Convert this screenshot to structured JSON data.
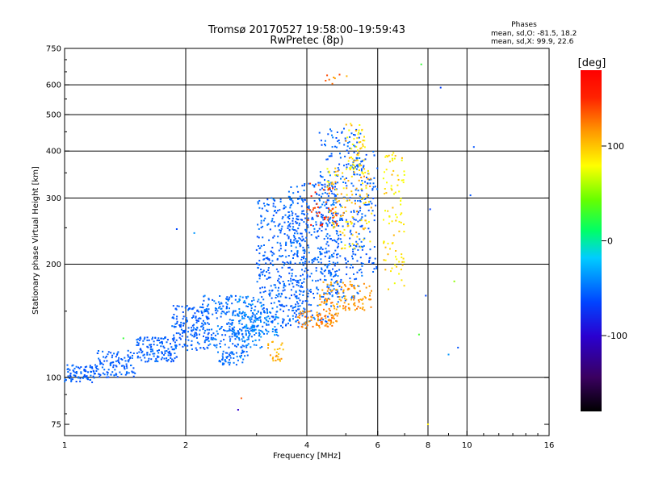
{
  "chart_data": {
    "type": "scatter",
    "title": "Tromsø 20170527 19:58:00–19:59:43",
    "subtitle": "RwPretec (8p)",
    "phases_header": "Phases",
    "phases_o": "mean, sd,O: -81.5, 18.2",
    "phases_x": "mean, sd,X:  99.9, 22.6",
    "xlabel": "Frequency [MHz]",
    "ylabel": "Stationary phase Virtual Height [km]",
    "x_scale": "log",
    "y_scale": "log",
    "xlim": [
      1,
      16
    ],
    "ylim": [
      70,
      750
    ],
    "xticks": [
      1,
      2,
      4,
      6,
      8,
      10,
      16
    ],
    "xtick_labels": [
      "1",
      "2",
      "4",
      "6",
      "8",
      "10",
      "16"
    ],
    "x_gridlines": [
      2,
      4,
      6,
      8,
      10
    ],
    "yticks": [
      75,
      100,
      200,
      300,
      400,
      500,
      600,
      750
    ],
    "ytick_labels": [
      "75",
      "100",
      "200",
      "300",
      "400",
      "500",
      "600",
      "750"
    ],
    "y_gridlines": [
      100,
      200,
      300,
      400,
      500,
      600
    ],
    "grid": true,
    "colorbar": {
      "label": "[deg]",
      "range": [
        -180,
        180
      ],
      "ticks": [
        100,
        0,
        -100
      ],
      "tick_labels": [
        "100",
        "0",
        "-100"
      ],
      "colormap": "black-purple-blue-cyan-green-yellow-orange-red"
    },
    "series": [
      {
        "mode": "O",
        "phase_mean": -81.5,
        "phase_sd": 18.2,
        "clusters": [
          {
            "f": [
              1.0,
              1.2
            ],
            "h": [
              97,
              108
            ],
            "phase": [
              -95,
              -75
            ],
            "count": 80
          },
          {
            "f": [
              1.2,
              1.5
            ],
            "h": [
              100,
              118
            ],
            "phase": [
              -95,
              -75
            ],
            "count": 110
          },
          {
            "f": [
              1.5,
              1.9
            ],
            "h": [
              110,
              128
            ],
            "phase": [
              -95,
              -75
            ],
            "count": 140
          },
          {
            "f": [
              1.85,
              2.3
            ],
            "h": [
              118,
              155
            ],
            "phase": [
              -95,
              -75
            ],
            "count": 170
          },
          {
            "f": [
              2.2,
              3.0
            ],
            "h": [
              120,
              165
            ],
            "phase": [
              -90,
              -65
            ],
            "count": 200
          },
          {
            "f": [
              2.4,
              2.8
            ],
            "h": [
              108,
              118
            ],
            "phase": [
              -90,
              -70
            ],
            "count": 50
          },
          {
            "f": [
              2.6,
              3.4
            ],
            "h": [
              128,
              150
            ],
            "phase": [
              -90,
              -50
            ],
            "count": 120
          },
          {
            "f": [
              3.0,
              4.0
            ],
            "h": [
              135,
              300
            ],
            "phase": [
              -95,
              -70
            ],
            "count": 380
          },
          {
            "f": [
              3.6,
              4.8
            ],
            "h": [
              140,
              330
            ],
            "phase": [
              -95,
              -70
            ],
            "count": 340
          },
          {
            "f": [
              4.3,
              5.5
            ],
            "h": [
              160,
              460
            ],
            "phase": [
              -95,
              -70
            ],
            "count": 260
          },
          {
            "f": [
              5.2,
              6.0
            ],
            "h": [
              190,
              400
            ],
            "phase": [
              -95,
              -75
            ],
            "count": 110
          },
          {
            "f": [
              2.7,
              3.1
            ],
            "h": [
              112,
              165
            ],
            "phase": [
              -80,
              -45
            ],
            "count": 50
          }
        ]
      },
      {
        "mode": "X",
        "phase_mean": 99.9,
        "phase_sd": 22.6,
        "clusters": [
          {
            "f": [
              3.2,
              3.5
            ],
            "h": [
              110,
              125
            ],
            "phase": [
              110,
              135
            ],
            "count": 25
          },
          {
            "f": [
              3.8,
              4.8
            ],
            "h": [
              135,
              150
            ],
            "phase": [
              120,
              150
            ],
            "count": 80
          },
          {
            "f": [
              4.3,
              5.8
            ],
            "h": [
              150,
              180
            ],
            "phase": [
              115,
              145
            ],
            "count": 110
          },
          {
            "f": [
              4.5,
              5.8
            ],
            "h": [
              220,
              360
            ],
            "phase": [
              85,
              135
            ],
            "count": 120
          },
          {
            "f": [
              5.0,
              5.6
            ],
            "h": [
              350,
              480
            ],
            "phase": [
              80,
              130
            ],
            "count": 55
          },
          {
            "f": [
              6.2,
              7.0
            ],
            "h": [
              170,
              400
            ],
            "phase": [
              80,
              120
            ],
            "count": 90
          },
          {
            "f": [
              4.4,
              5.2
            ],
            "h": [
              600,
              640
            ],
            "phase": [
              120,
              160
            ],
            "count": 8
          },
          {
            "f": [
              4.0,
              4.8
            ],
            "h": [
              250,
              330
            ],
            "phase": [
              140,
              175
            ],
            "count": 40
          }
        ]
      }
    ],
    "outliers": [
      {
        "f": 10.4,
        "h": 410,
        "phase": -90
      },
      {
        "f": 8.6,
        "h": 590,
        "phase": -100
      },
      {
        "f": 8.1,
        "h": 280,
        "phase": -100
      },
      {
        "f": 7.9,
        "h": 165,
        "phase": -95
      },
      {
        "f": 7.6,
        "h": 130,
        "phase": 20
      },
      {
        "f": 9.5,
        "h": 120,
        "phase": -90
      },
      {
        "f": 9.0,
        "h": 115,
        "phase": -60
      },
      {
        "f": 9.3,
        "h": 180,
        "phase": 40
      },
      {
        "f": 10.2,
        "h": 305,
        "phase": -90
      },
      {
        "f": 8.0,
        "h": 75,
        "phase": 95
      },
      {
        "f": 7.7,
        "h": 680,
        "phase": 15
      },
      {
        "f": 2.75,
        "h": 88,
        "phase": 150
      },
      {
        "f": 2.7,
        "h": 82,
        "phase": -130
      },
      {
        "f": 1.4,
        "h": 127,
        "phase": 15
      },
      {
        "f": 1.9,
        "h": 248,
        "phase": -95
      },
      {
        "f": 2.1,
        "h": 242,
        "phase": -60
      }
    ]
  }
}
